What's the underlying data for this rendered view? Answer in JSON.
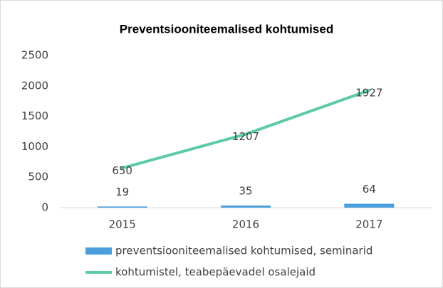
{
  "chart_data": {
    "type": "bar",
    "title": "Preventsiooniteemalised kohtumised",
    "categories": [
      "2015",
      "2016",
      "2017"
    ],
    "series": [
      {
        "name": "preventsiooniteemalised kohtumised, seminarid",
        "type": "bar",
        "color": "#4a9edb",
        "values": [
          19,
          35,
          64
        ]
      },
      {
        "name": "kohtumistel, teabepäevadel osalejaid",
        "type": "line",
        "color": "#5ccaa6",
        "values": [
          650,
          1207,
          1927
        ]
      }
    ],
    "ylim": [
      0,
      2500
    ],
    "yticks": [
      0,
      500,
      1000,
      1500,
      2000,
      2500
    ],
    "grid": false
  }
}
